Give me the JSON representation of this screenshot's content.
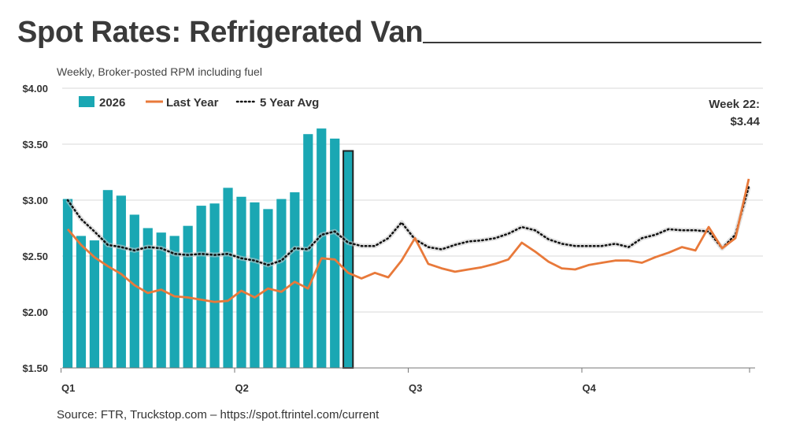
{
  "page": {
    "title": "Spot Rates: Refrigerated Van",
    "subtitle": "Weekly, Broker-posted RPM including fuel",
    "source": "Source: FTR, Truckstop.com – https://spot.ftrintel.com/current",
    "callout_line1": "Week 22:",
    "callout_line2": "$3.44"
  },
  "chart_data": {
    "type": "bar",
    "ylim": [
      1.5,
      4.0
    ],
    "y_ticks": [
      1.5,
      2.0,
      2.5,
      3.0,
      3.5,
      4.0
    ],
    "y_tick_labels": [
      "$1.50",
      "$2.00",
      "$2.50",
      "$3.00",
      "$3.50",
      "$4.00"
    ],
    "x_week_range": [
      1,
      52
    ],
    "quarter_labels": [
      {
        "label": "Q1",
        "week": 1
      },
      {
        "label": "Q2",
        "week": 14
      },
      {
        "label": "Q3",
        "week": 27
      },
      {
        "label": "Q4",
        "week": 40
      }
    ],
    "grid": true,
    "legend_position": "top-left",
    "colors": {
      "bars": "#1aa7b3",
      "bar_edge_highlight": "#222222",
      "last_year": "#e8793a",
      "avg": "#111111"
    },
    "series": [
      {
        "name": "2026",
        "kind": "bar",
        "values": [
          3.01,
          2.68,
          2.64,
          3.09,
          3.04,
          2.87,
          2.75,
          2.71,
          2.68,
          2.77,
          2.95,
          2.97,
          3.11,
          3.03,
          2.98,
          2.92,
          3.01,
          3.07,
          3.59,
          3.64,
          3.55,
          3.44
        ]
      },
      {
        "name": "Last Year",
        "kind": "line",
        "values": [
          2.74,
          2.6,
          2.49,
          2.41,
          2.34,
          2.24,
          2.17,
          2.2,
          2.14,
          2.13,
          2.11,
          2.09,
          2.1,
          2.19,
          2.13,
          2.21,
          2.18,
          2.27,
          2.21,
          2.48,
          2.47,
          2.35,
          2.3,
          2.35,
          2.31,
          2.46,
          2.66,
          2.43,
          2.39,
          2.36,
          2.38,
          2.4,
          2.43,
          2.47,
          2.62,
          2.54,
          2.45,
          2.39,
          2.38,
          2.42,
          2.44,
          2.46,
          2.46,
          2.44,
          2.49,
          2.53,
          2.58,
          2.55,
          2.76,
          2.57,
          2.66,
          3.19
        ]
      },
      {
        "name": "5 Year Avg",
        "kind": "dotted-line",
        "values": [
          3.0,
          2.83,
          2.72,
          2.6,
          2.58,
          2.55,
          2.58,
          2.57,
          2.52,
          2.51,
          2.52,
          2.51,
          2.52,
          2.48,
          2.46,
          2.42,
          2.46,
          2.57,
          2.56,
          2.69,
          2.72,
          2.62,
          2.59,
          2.59,
          2.66,
          2.8,
          2.65,
          2.58,
          2.56,
          2.6,
          2.63,
          2.64,
          2.66,
          2.7,
          2.76,
          2.73,
          2.65,
          2.61,
          2.59,
          2.59,
          2.59,
          2.61,
          2.58,
          2.66,
          2.69,
          2.74,
          2.73,
          2.73,
          2.72,
          2.57,
          2.69,
          3.12
        ]
      }
    ]
  }
}
